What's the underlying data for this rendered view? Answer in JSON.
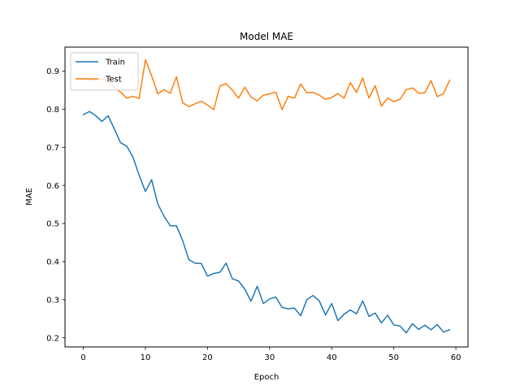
{
  "chart_data": {
    "type": "line",
    "title": "Model MAE",
    "xlabel": "Epoch",
    "ylabel": "MAE",
    "xlim": [
      -2.95,
      61.95
    ],
    "ylim": [
      0.176,
      0.963
    ],
    "xticks": [
      0,
      10,
      20,
      30,
      40,
      50,
      60
    ],
    "yticks": [
      0.2,
      0.3,
      0.4,
      0.5,
      0.6,
      0.7,
      0.8,
      0.9
    ],
    "ytick_labels": [
      "0.2",
      "0.3",
      "0.4",
      "0.5",
      "0.6",
      "0.7",
      "0.8",
      "0.9"
    ],
    "grid": false,
    "legend_position": "top-left",
    "x": [
      0,
      1,
      2,
      3,
      4,
      5,
      6,
      7,
      8,
      9,
      10,
      11,
      12,
      13,
      14,
      15,
      16,
      17,
      18,
      19,
      20,
      21,
      22,
      23,
      24,
      25,
      26,
      27,
      28,
      29,
      30,
      31,
      32,
      33,
      34,
      35,
      36,
      37,
      38,
      39,
      40,
      41,
      42,
      43,
      44,
      45,
      46,
      47,
      48,
      49,
      50,
      51,
      52,
      53,
      54,
      55,
      56,
      57,
      58,
      59
    ],
    "series": [
      {
        "name": "Train",
        "color": "#1f77b4",
        "values": [
          0.786,
          0.794,
          0.783,
          0.768,
          0.783,
          0.748,
          0.712,
          0.703,
          0.674,
          0.626,
          0.584,
          0.615,
          0.551,
          0.519,
          0.494,
          0.494,
          0.455,
          0.405,
          0.396,
          0.395,
          0.362,
          0.369,
          0.372,
          0.396,
          0.355,
          0.349,
          0.328,
          0.296,
          0.335,
          0.29,
          0.302,
          0.307,
          0.28,
          0.276,
          0.278,
          0.258,
          0.3,
          0.311,
          0.297,
          0.26,
          0.29,
          0.245,
          0.262,
          0.273,
          0.263,
          0.297,
          0.256,
          0.265,
          0.239,
          0.259,
          0.234,
          0.231,
          0.213,
          0.237,
          0.222,
          0.233,
          0.221,
          0.235,
          0.215,
          0.221
        ]
      },
      {
        "name": "Test",
        "color": "#ff7f0e",
        "values": [
          0.882,
          0.876,
          0.877,
          0.88,
          0.874,
          0.856,
          0.845,
          0.829,
          0.834,
          0.828,
          0.93,
          0.888,
          0.84,
          0.851,
          0.842,
          0.885,
          0.817,
          0.807,
          0.814,
          0.821,
          0.811,
          0.799,
          0.861,
          0.867,
          0.85,
          0.829,
          0.858,
          0.832,
          0.822,
          0.837,
          0.84,
          0.845,
          0.799,
          0.834,
          0.829,
          0.866,
          0.843,
          0.844,
          0.837,
          0.826,
          0.831,
          0.841,
          0.829,
          0.87,
          0.844,
          0.882,
          0.829,
          0.862,
          0.808,
          0.829,
          0.82,
          0.826,
          0.851,
          0.856,
          0.842,
          0.843,
          0.875,
          0.833,
          0.841,
          0.876
        ]
      }
    ]
  }
}
